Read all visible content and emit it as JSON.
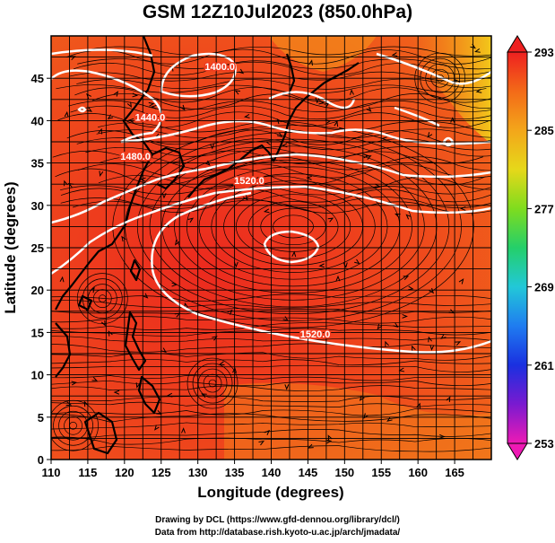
{
  "title": "GSM 12Z10Jul2023 (850.0hPa)",
  "credit_line1": "Drawing by DCL (https://www.gfd-dennou.org/library/dcl/)",
  "credit_line2": "Data from http://database.rish.kyoto-u.ac.jp/arch/jmadata/",
  "chart_data": {
    "type": "map",
    "xlabel": "Longitude (degrees)",
    "ylabel": "Latitude  (degrees)",
    "xlim": [
      110,
      170
    ],
    "ylim": [
      0,
      50
    ],
    "x_ticks": [
      "110",
      "115",
      "120",
      "125",
      "130",
      "135",
      "140",
      "145",
      "150",
      "155",
      "160",
      "165"
    ],
    "y_ticks": [
      "0",
      "5",
      "10",
      "15",
      "20",
      "25",
      "30",
      "35",
      "40",
      "45"
    ],
    "colorbar": {
      "ticks": [
        "293",
        "285",
        "277",
        "269",
        "261",
        "253"
      ],
      "range": [
        253,
        293
      ],
      "colors": [
        "#ee2020",
        "#f38b18",
        "#f2cc1a",
        "#a6e81e",
        "#2fd14a",
        "#22d6c8",
        "#1f86f0",
        "#1a36e6",
        "#5a1ad6",
        "#cc1ec8",
        "#ee1ab4"
      ]
    },
    "contour_labels": [
      {
        "text": "1400.0",
        "lon": 133.0,
        "lat": 46.0
      },
      {
        "text": "1440.0",
        "lon": 123.5,
        "lat": 40.0
      },
      {
        "text": "1480.0",
        "lon": 121.5,
        "lat": 35.4
      },
      {
        "text": "1520.0",
        "lon": 137.0,
        "lat": 32.5
      },
      {
        "text": "1520.0",
        "lon": 146.0,
        "lat": 14.4
      }
    ]
  }
}
